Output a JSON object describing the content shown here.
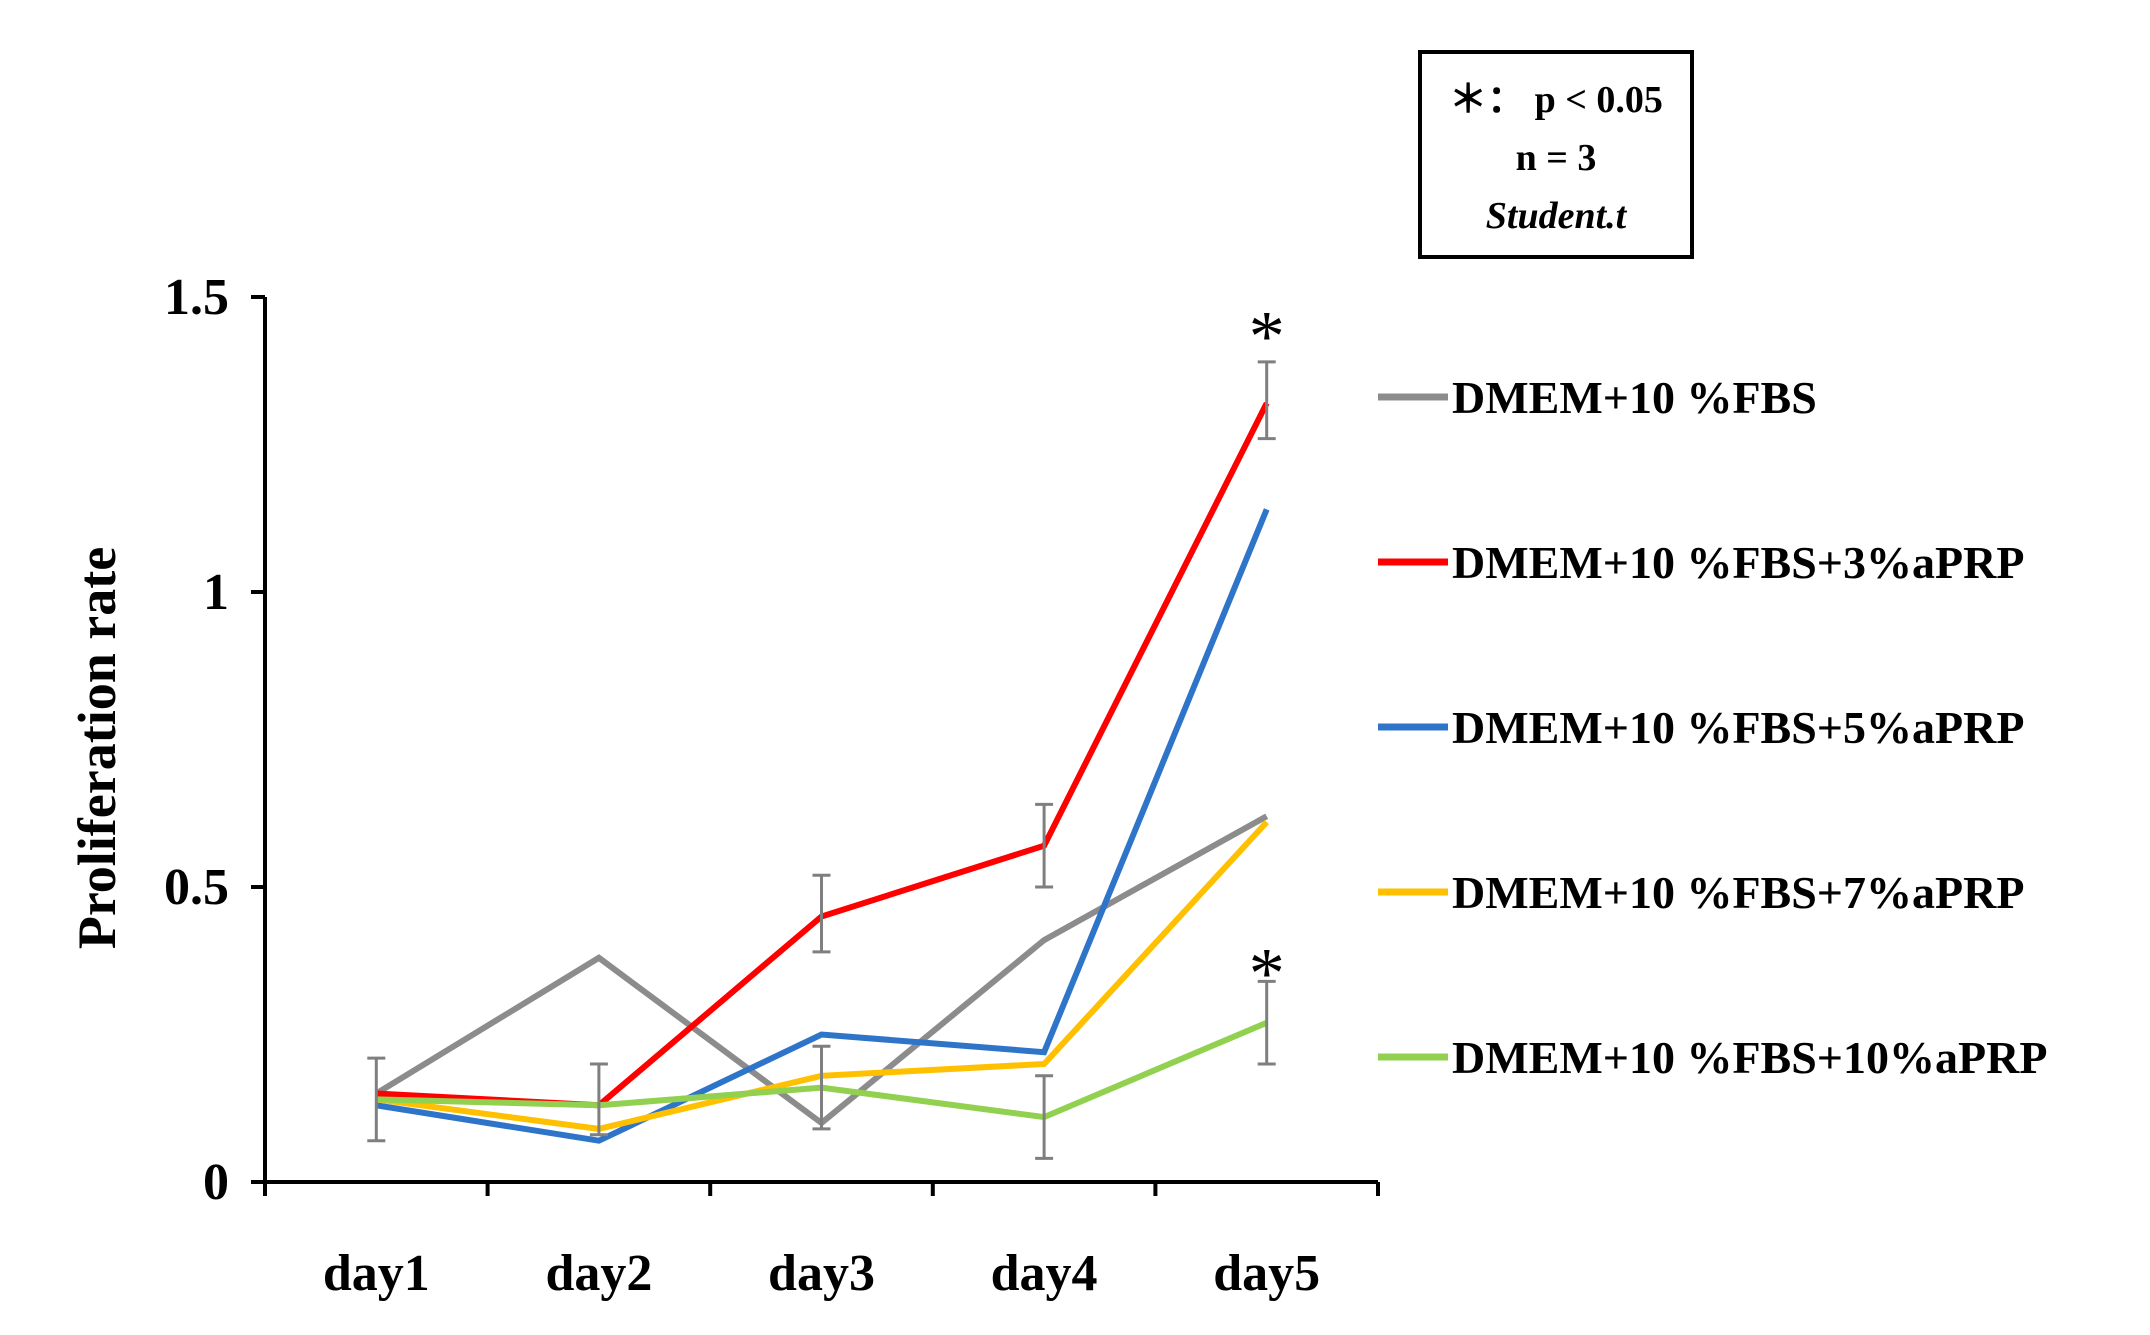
{
  "chart_data": {
    "type": "line",
    "title": "",
    "xlabel": "",
    "ylabel": "Proliferation rate",
    "ylim": [
      0,
      1.5
    ],
    "yticks": [
      "0",
      "0.5",
      "1",
      "1.5"
    ],
    "yticks_values": [
      0,
      0.5,
      1,
      1.5
    ],
    "categories": [
      "day1",
      "day2",
      "day3",
      "day4",
      "day5"
    ],
    "series": [
      {
        "name": "DMEM+10 %FBS",
        "color": "#8c8c8c",
        "values": [
          0.15,
          0.38,
          0.1,
          0.41,
          0.62
        ]
      },
      {
        "name": "DMEM+10 %FBS+3%aPRP",
        "color": "#ff0000",
        "values": [
          0.15,
          0.13,
          0.45,
          0.57,
          1.32
        ]
      },
      {
        "name": "DMEM+10 %FBS+5%aPRP",
        "color": "#2e75c9",
        "values": [
          0.13,
          0.07,
          0.25,
          0.22,
          1.14
        ]
      },
      {
        "name": "DMEM+10 %FBS+7%aPRP",
        "color": "#ffc000",
        "values": [
          0.14,
          0.09,
          0.18,
          0.2,
          0.61
        ]
      },
      {
        "name": "DMEM+10 %FBS+10%aPRP",
        "color": "#92d050",
        "values": [
          0.14,
          0.13,
          0.16,
          0.11,
          0.27
        ]
      }
    ],
    "error_bars": [
      {
        "category": "day1",
        "low": 0.07,
        "high": 0.21
      },
      {
        "category": "day2",
        "low": 0.08,
        "high": 0.2
      },
      {
        "category": "day3",
        "low": 0.09,
        "high": 0.23
      },
      {
        "category": "day3",
        "low": 0.39,
        "high": 0.52
      },
      {
        "category": "day4",
        "low": 0.04,
        "high": 0.18
      },
      {
        "category": "day4",
        "low": 0.5,
        "high": 0.64
      },
      {
        "category": "day5",
        "low": 1.26,
        "high": 1.39
      },
      {
        "category": "day5",
        "low": 0.2,
        "high": 0.34
      }
    ],
    "significance": [
      {
        "category": "day5",
        "value": 1.45,
        "text": "*"
      },
      {
        "category": "day5",
        "value": 0.37,
        "text": "*"
      }
    ],
    "legend_position": "right",
    "grid": false
  },
  "stats_box": {
    "line1": "＊： p < 0.05",
    "line2": "n = 3",
    "line3": "Student.t"
  }
}
